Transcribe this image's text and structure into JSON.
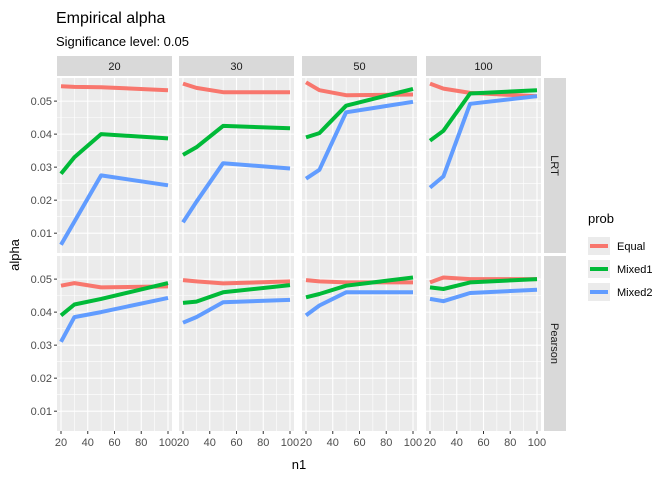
{
  "chart_data": {
    "type": "line",
    "title": "Empirical alpha",
    "subtitle": "Significance level: 0.05",
    "xlabel": "n1",
    "ylabel": "alpha",
    "xlim": [
      17,
      103
    ],
    "ylim": [
      0.004,
      0.057
    ],
    "x_ticks": [
      20,
      40,
      60,
      80,
      100
    ],
    "y_ticks": [
      0.01,
      0.02,
      0.03,
      0.04,
      0.05
    ],
    "y_tick_labels": [
      "0.01",
      "0.02",
      "0.03",
      "0.04",
      "0.05"
    ],
    "x_tick_labels": [
      "20",
      "40",
      "60",
      "80",
      "100"
    ],
    "col_facets": [
      "20",
      "30",
      "50",
      "100"
    ],
    "row_facets": [
      "LRT",
      "Pearson"
    ],
    "grid": true,
    "legend": {
      "title": "prob",
      "placement": "right",
      "entries": [
        {
          "name": "Equal",
          "color": "#F8766D"
        },
        {
          "name": "Mixed1",
          "color": "#00BA38"
        },
        {
          "name": "Mixed2",
          "color": "#619CFF"
        }
      ]
    },
    "x": [
      20,
      30,
      50,
      100
    ],
    "panels": [
      {
        "row": "LRT",
        "col": "20",
        "series": [
          {
            "name": "Equal",
            "values": [
              0.0545,
              0.0543,
              0.0542,
              0.0533
            ]
          },
          {
            "name": "Mixed1",
            "values": [
              0.028,
              0.033,
              0.04,
              0.0387
            ]
          },
          {
            "name": "Mixed2",
            "values": [
              0.0065,
              0.0135,
              0.0275,
              0.0245
            ]
          }
        ]
      },
      {
        "row": "LRT",
        "col": "30",
        "series": [
          {
            "name": "Equal",
            "values": [
              0.0553,
              0.054,
              0.0527,
              0.0527
            ]
          },
          {
            "name": "Mixed1",
            "values": [
              0.0337,
              0.036,
              0.0425,
              0.0418
            ]
          },
          {
            "name": "Mixed2",
            "values": [
              0.0133,
              0.0195,
              0.0312,
              0.0296
            ]
          }
        ]
      },
      {
        "row": "LRT",
        "col": "50",
        "series": [
          {
            "name": "Equal",
            "values": [
              0.0557,
              0.0533,
              0.0518,
              0.052
            ]
          },
          {
            "name": "Mixed1",
            "values": [
              0.039,
              0.0403,
              0.0486,
              0.0537
            ]
          },
          {
            "name": "Mixed2",
            "values": [
              0.0265,
              0.0292,
              0.0466,
              0.0498
            ]
          }
        ]
      },
      {
        "row": "LRT",
        "col": "100",
        "series": [
          {
            "name": "Equal",
            "values": [
              0.0553,
              0.0538,
              0.0525,
              0.0515
            ]
          },
          {
            "name": "Mixed1",
            "values": [
              0.038,
              0.041,
              0.0523,
              0.0533
            ]
          },
          {
            "name": "Mixed2",
            "values": [
              0.0238,
              0.0272,
              0.0492,
              0.0515
            ]
          }
        ]
      },
      {
        "row": "Pearson",
        "col": "20",
        "series": [
          {
            "name": "Equal",
            "values": [
              0.048,
              0.0488,
              0.0475,
              0.0478
            ]
          },
          {
            "name": "Mixed1",
            "values": [
              0.039,
              0.0423,
              0.044,
              0.0488
            ]
          },
          {
            "name": "Mixed2",
            "values": [
              0.031,
              0.0385,
              0.04,
              0.0443
            ]
          }
        ]
      },
      {
        "row": "Pearson",
        "col": "30",
        "series": [
          {
            "name": "Equal",
            "values": [
              0.0497,
              0.0493,
              0.0487,
              0.0493
            ]
          },
          {
            "name": "Mixed1",
            "values": [
              0.0428,
              0.0432,
              0.046,
              0.0482
            ]
          },
          {
            "name": "Mixed2",
            "values": [
              0.0368,
              0.0385,
              0.043,
              0.0437
            ]
          }
        ]
      },
      {
        "row": "Pearson",
        "col": "50",
        "series": [
          {
            "name": "Equal",
            "values": [
              0.0497,
              0.0493,
              0.049,
              0.049
            ]
          },
          {
            "name": "Mixed1",
            "values": [
              0.0445,
              0.0455,
              0.048,
              0.0505
            ]
          },
          {
            "name": "Mixed2",
            "values": [
              0.039,
              0.042,
              0.046,
              0.046
            ]
          }
        ]
      },
      {
        "row": "Pearson",
        "col": "100",
        "series": [
          {
            "name": "Equal",
            "values": [
              0.049,
              0.0505,
              0.05,
              0.05
            ]
          },
          {
            "name": "Mixed1",
            "values": [
              0.0475,
              0.047,
              0.049,
              0.05
            ]
          },
          {
            "name": "Mixed2",
            "values": [
              0.044,
              0.0433,
              0.0458,
              0.0468
            ]
          }
        ]
      }
    ]
  }
}
